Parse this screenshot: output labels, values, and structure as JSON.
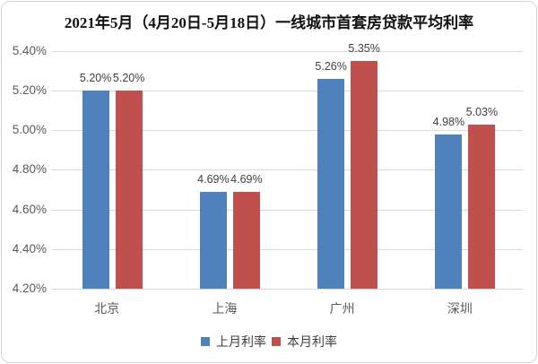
{
  "chart_data": {
    "type": "bar",
    "title": "2021年5月（4月20日-5月18日）一线城市首套房贷款平均利率",
    "categories": [
      "北京",
      "上海",
      "广州",
      "深圳"
    ],
    "series": [
      {
        "name": "上月利率",
        "color": "#4F81BD",
        "values": [
          5.2,
          4.69,
          5.26,
          4.98
        ]
      },
      {
        "name": "本月利率",
        "color": "#C0504D",
        "values": [
          5.2,
          4.69,
          5.35,
          5.03
        ]
      }
    ],
    "ylim": [
      4.2,
      5.4
    ],
    "ytick_step": 0.2,
    "ytick_labels": [
      "4.20%",
      "4.40%",
      "4.60%",
      "4.80%",
      "5.00%",
      "5.20%",
      "5.40%"
    ],
    "data_label_format": "0.00%",
    "grid": true,
    "legend_position": "bottom"
  }
}
